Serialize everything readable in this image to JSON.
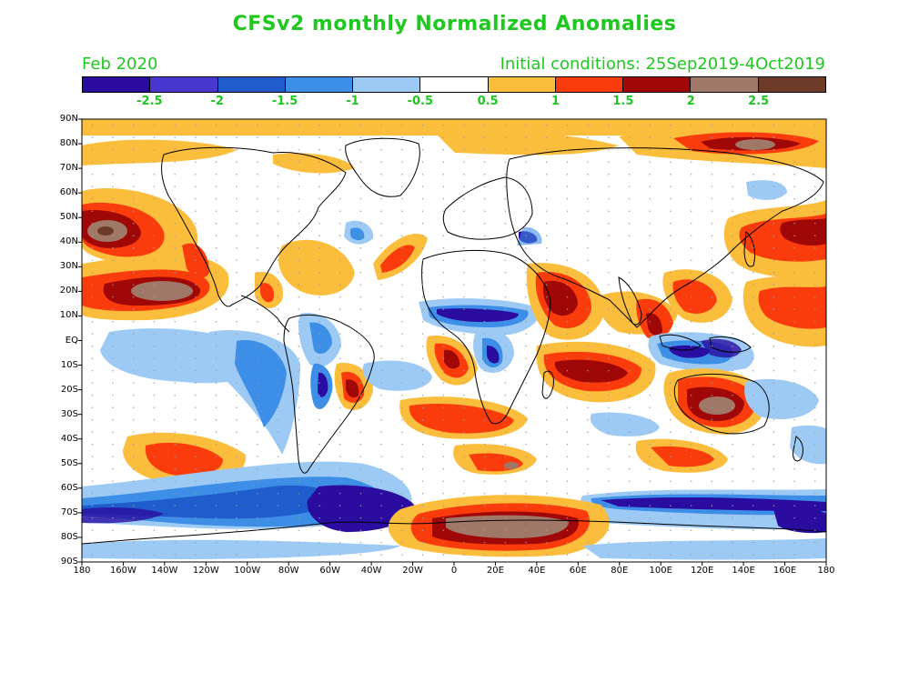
{
  "title": "CFSv2 monthly Normalized Anomalies",
  "forecast_month": "Feb 2020",
  "initial_conditions": "Initial conditions: 25Sep2019-4Oct2019",
  "colorbar": {
    "colors": [
      "#2a0ca0",
      "#4a37cf",
      "#1f5ccc",
      "#3d8ee6",
      "#9dcaf5",
      "#ffffff",
      "#fbbe3c",
      "#fa3c0c",
      "#a00808",
      "#a07868",
      "#6e3a2a"
    ],
    "labels": [
      "-2.5",
      "-2",
      "-1.5",
      "-1",
      "-0.5",
      "0.5",
      "1",
      "1.5",
      "2",
      "2.5"
    ]
  },
  "axes": {
    "lat_labels": [
      "90N",
      "80N",
      "70N",
      "60N",
      "50N",
      "40N",
      "30N",
      "20N",
      "10N",
      "EQ",
      "10S",
      "20S",
      "30S",
      "40S",
      "50S",
      "60S",
      "70S",
      "80S",
      "90S"
    ],
    "lon_labels": [
      "180",
      "160W",
      "140W",
      "120W",
      "100W",
      "80W",
      "60W",
      "40W",
      "20W",
      "0",
      "20E",
      "40E",
      "60E",
      "80E",
      "100E",
      "120E",
      "140E",
      "160E",
      "180"
    ]
  }
}
